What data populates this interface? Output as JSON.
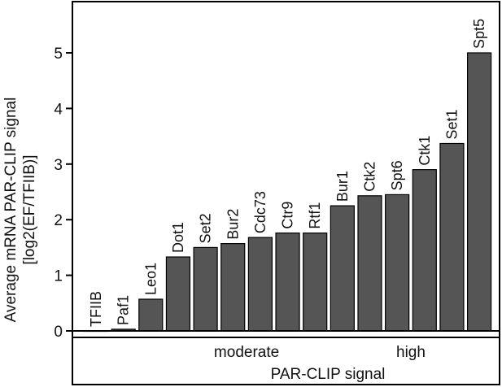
{
  "chart_data": {
    "type": "bar",
    "categories": [
      "TFIIB",
      "Paf1",
      "Leo1",
      "Dot1",
      "Set2",
      "Bur2",
      "Cdc73",
      "Ctr9",
      "Rtf1",
      "Bur1",
      "Ctk2",
      "Spt6",
      "Ctk1",
      "Set1",
      "Spt5"
    ],
    "values": [
      0.0,
      0.03,
      0.57,
      1.33,
      1.5,
      1.57,
      1.68,
      1.76,
      1.76,
      2.25,
      2.43,
      2.45,
      2.9,
      3.37,
      5.0
    ],
    "xlabel": "PAR-CLIP signal",
    "ylabel_line1": "Average mRNA PAR-CLIP signal",
    "ylabel_line2": "[log2(EF/TFIIB)]",
    "ylim": [
      0,
      5.8
    ],
    "yticks": [
      0,
      1,
      2,
      3,
      4,
      5
    ],
    "groups": [
      {
        "label": "moderate",
        "from": 3,
        "to": 8
      },
      {
        "label": "high",
        "from": 9,
        "to": 14
      }
    ],
    "bar_color": "#555555",
    "grid": false
  }
}
